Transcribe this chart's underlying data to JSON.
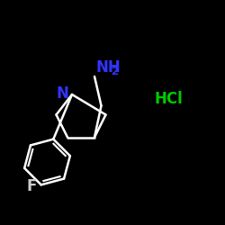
{
  "background_color": "#000000",
  "NH2_color": "#3333FF",
  "N_color": "#3333FF",
  "HCl_color": "#00CC00",
  "F_color": "#CCCCCC",
  "bond_color": "#FFFFFF",
  "figsize": [
    2.5,
    2.5
  ],
  "dpi": 100,
  "xlim": [
    0,
    10
  ],
  "ylim": [
    0,
    10
  ],
  "N_label": "N",
  "NH2_label": "NH",
  "NH2_sub": "2",
  "HCl_label": "HCl",
  "F_label": "F",
  "lw": 1.8
}
